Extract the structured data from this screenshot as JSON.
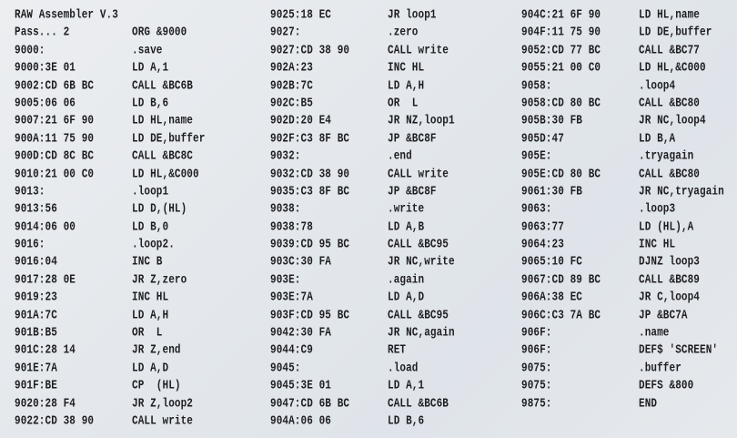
{
  "listing": {
    "columns": [
      [
        [
          "RAW Assembler V.3",
          ""
        ],
        [
          "Pass... 2",
          "ORG &9000"
        ],
        [
          "9000:",
          ".save"
        ],
        [
          "9000:3E 01",
          "LD A,1"
        ],
        [
          "9002:CD 6B BC",
          "CALL &BC6B"
        ],
        [
          "9005:06 06",
          "LD B,6"
        ],
        [
          "9007:21 6F 90",
          "LD HL,name"
        ],
        [
          "900A:11 75 90",
          "LD DE,buffer"
        ],
        [
          "900D:CD 8C BC",
          "CALL &BC8C"
        ],
        [
          "9010:21 00 C0",
          "LD HL,&C000"
        ],
        [
          "9013:",
          ".loop1"
        ],
        [
          "9013:56",
          "LD D,(HL)"
        ],
        [
          "9014:06 00",
          "LD B,0"
        ],
        [
          "9016:",
          ".loop2."
        ],
        [
          "9016:04",
          "INC B"
        ],
        [
          "9017:28 0E",
          "JR Z,zero"
        ],
        [
          "9019:23",
          "INC HL"
        ],
        [
          "901A:7C",
          "LD A,H"
        ],
        [
          "901B:B5",
          "OR  L"
        ],
        [
          "901C:28 14",
          "JR Z,end"
        ],
        [
          "901E:7A",
          "LD A,D"
        ],
        [
          "901F:BE",
          "CP  (HL)"
        ],
        [
          "9020:28 F4",
          "JR Z,loop2"
        ],
        [
          "9022:CD 38 90",
          "CALL write"
        ]
      ],
      [
        [
          "9025:18 EC",
          "JR loop1"
        ],
        [
          "9027:",
          ".zero"
        ],
        [
          "9027:CD 38 90",
          "CALL write"
        ],
        [
          "902A:23",
          "INC HL"
        ],
        [
          "902B:7C",
          "LD A,H"
        ],
        [
          "902C:B5",
          "OR  L"
        ],
        [
          "902D:20 E4",
          "JR NZ,loop1"
        ],
        [
          "902F:C3 8F BC",
          "JP &BC8F"
        ],
        [
          "9032:",
          ".end"
        ],
        [
          "9032:CD 38 90",
          "CALL write"
        ],
        [
          "9035:C3 8F BC",
          "JP &BC8F"
        ],
        [
          "9038:",
          ".write"
        ],
        [
          "9038:78",
          "LD A,B"
        ],
        [
          "9039:CD 95 BC",
          "CALL &BC95"
        ],
        [
          "903C:30 FA",
          "JR NC,write"
        ],
        [
          "903E:",
          ".again"
        ],
        [
          "903E:7A",
          "LD A,D"
        ],
        [
          "903F:CD 95 BC",
          "CALL &BC95"
        ],
        [
          "9042:30 FA",
          "JR NC,again"
        ],
        [
          "9044:C9",
          "RET"
        ],
        [
          "9045:",
          ".load"
        ],
        [
          "9045:3E 01",
          "LD A,1"
        ],
        [
          "9047:CD 6B BC",
          "CALL &BC6B"
        ],
        [
          "904A:06 06",
          "LD B,6"
        ]
      ],
      [
        [
          "904C:21 6F 90",
          "LD HL,name"
        ],
        [
          "904F:11 75 90",
          "LD DE,buffer"
        ],
        [
          "9052:CD 77 BC",
          "CALL &BC77"
        ],
        [
          "9055:21 00 C0",
          "LD HL,&C000"
        ],
        [
          "9058:",
          ".loop4"
        ],
        [
          "9058:CD 80 BC",
          "CALL &BC80"
        ],
        [
          "905B:30 FB",
          "JR NC,loop4"
        ],
        [
          "905D:47",
          "LD B,A"
        ],
        [
          "905E:",
          ".tryagain"
        ],
        [
          "905E:CD 80 BC",
          "CALL &BC80"
        ],
        [
          "9061:30 FB",
          "JR NC,tryagain"
        ],
        [
          "9063:",
          ".loop3"
        ],
        [
          "9063:77",
          "LD (HL),A"
        ],
        [
          "9064:23",
          "INC HL"
        ],
        [
          "9065:10 FC",
          "DJNZ loop3"
        ],
        [
          "9067:CD 89 BC",
          "CALL &BC89"
        ],
        [
          "906A:38 EC",
          "JR C,loop4"
        ],
        [
          "906C:C3 7A BC",
          "JP &BC7A"
        ],
        [
          "906F:",
          ".name"
        ],
        [
          "906F:",
          "DEF$ 'SCREEN'"
        ],
        [
          "9075:",
          ".buffer"
        ],
        [
          "9075:",
          "DEFS &800"
        ],
        [
          "9875:",
          "END"
        ]
      ]
    ]
  }
}
